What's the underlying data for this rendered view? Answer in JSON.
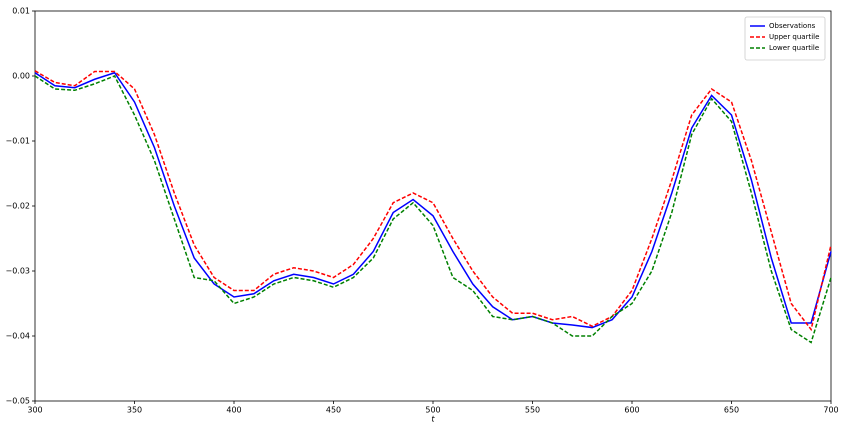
{
  "chart_data": {
    "type": "line",
    "x_label": "t",
    "x": [
      300,
      310,
      320,
      330,
      340,
      350,
      360,
      370,
      380,
      390,
      400,
      410,
      420,
      430,
      440,
      450,
      460,
      470,
      480,
      490,
      500,
      510,
      520,
      530,
      540,
      550,
      560,
      570,
      580,
      590,
      600,
      610,
      620,
      630,
      640,
      650,
      660,
      670,
      680,
      690,
      700
    ],
    "series": [
      {
        "name": "Observations",
        "color": "#0000ff",
        "style": "solid",
        "values": [
          0.0005,
          -0.0015,
          -0.0018,
          -0.0005,
          0.0005,
          -0.004,
          -0.011,
          -0.02,
          -0.028,
          -0.032,
          -0.034,
          -0.0335,
          -0.0315,
          -0.0305,
          -0.031,
          -0.032,
          -0.0305,
          -0.027,
          -0.021,
          -0.019,
          -0.0215,
          -0.027,
          -0.032,
          -0.0355,
          -0.0375,
          -0.037,
          -0.038,
          -0.0383,
          -0.0387,
          -0.0375,
          -0.034,
          -0.027,
          -0.018,
          -0.008,
          -0.003,
          -0.006,
          -0.016,
          -0.028,
          -0.038,
          -0.038,
          -0.027
        ]
      },
      {
        "name": "Upper quartile",
        "color": "#ff0000",
        "style": "dashed",
        "values": [
          0.0008,
          -0.001,
          -0.0015,
          0.0007,
          0.0007,
          -0.002,
          -0.009,
          -0.018,
          -0.026,
          -0.031,
          -0.033,
          -0.033,
          -0.0305,
          -0.0295,
          -0.03,
          -0.031,
          -0.029,
          -0.025,
          -0.0195,
          -0.018,
          -0.0195,
          -0.025,
          -0.03,
          -0.034,
          -0.0365,
          -0.0365,
          -0.0375,
          -0.037,
          -0.0385,
          -0.037,
          -0.033,
          -0.025,
          -0.016,
          -0.006,
          -0.002,
          -0.004,
          -0.013,
          -0.024,
          -0.035,
          -0.039,
          -0.026
        ]
      },
      {
        "name": "Lower quartile",
        "color": "#008000",
        "style": "dashed",
        "values": [
          0.0,
          -0.002,
          -0.0022,
          -0.0012,
          0.0,
          -0.006,
          -0.013,
          -0.022,
          -0.031,
          -0.0315,
          -0.035,
          -0.034,
          -0.032,
          -0.031,
          -0.0315,
          -0.0325,
          -0.031,
          -0.028,
          -0.022,
          -0.0195,
          -0.023,
          -0.031,
          -0.033,
          -0.037,
          -0.0375,
          -0.037,
          -0.038,
          -0.04,
          -0.04,
          -0.037,
          -0.035,
          -0.03,
          -0.021,
          -0.009,
          -0.0035,
          -0.007,
          -0.018,
          -0.03,
          -0.039,
          -0.041,
          -0.031
        ]
      }
    ],
    "xlim": [
      300,
      700
    ],
    "xticks": [
      300,
      350,
      400,
      450,
      500,
      550,
      600,
      650,
      700
    ],
    "ylim": [
      -0.05,
      0.01
    ],
    "yticks": [
      {
        "value": -0.05,
        "label": "−0.05"
      },
      {
        "value": -0.04,
        "label": "−0.04"
      },
      {
        "value": -0.03,
        "label": "−0.03"
      },
      {
        "value": -0.02,
        "label": "−0.02"
      },
      {
        "value": -0.01,
        "label": "−0.01"
      },
      {
        "value": 0,
        "label": "0.00"
      },
      0.01
    ],
    "legend": "upper-right"
  }
}
